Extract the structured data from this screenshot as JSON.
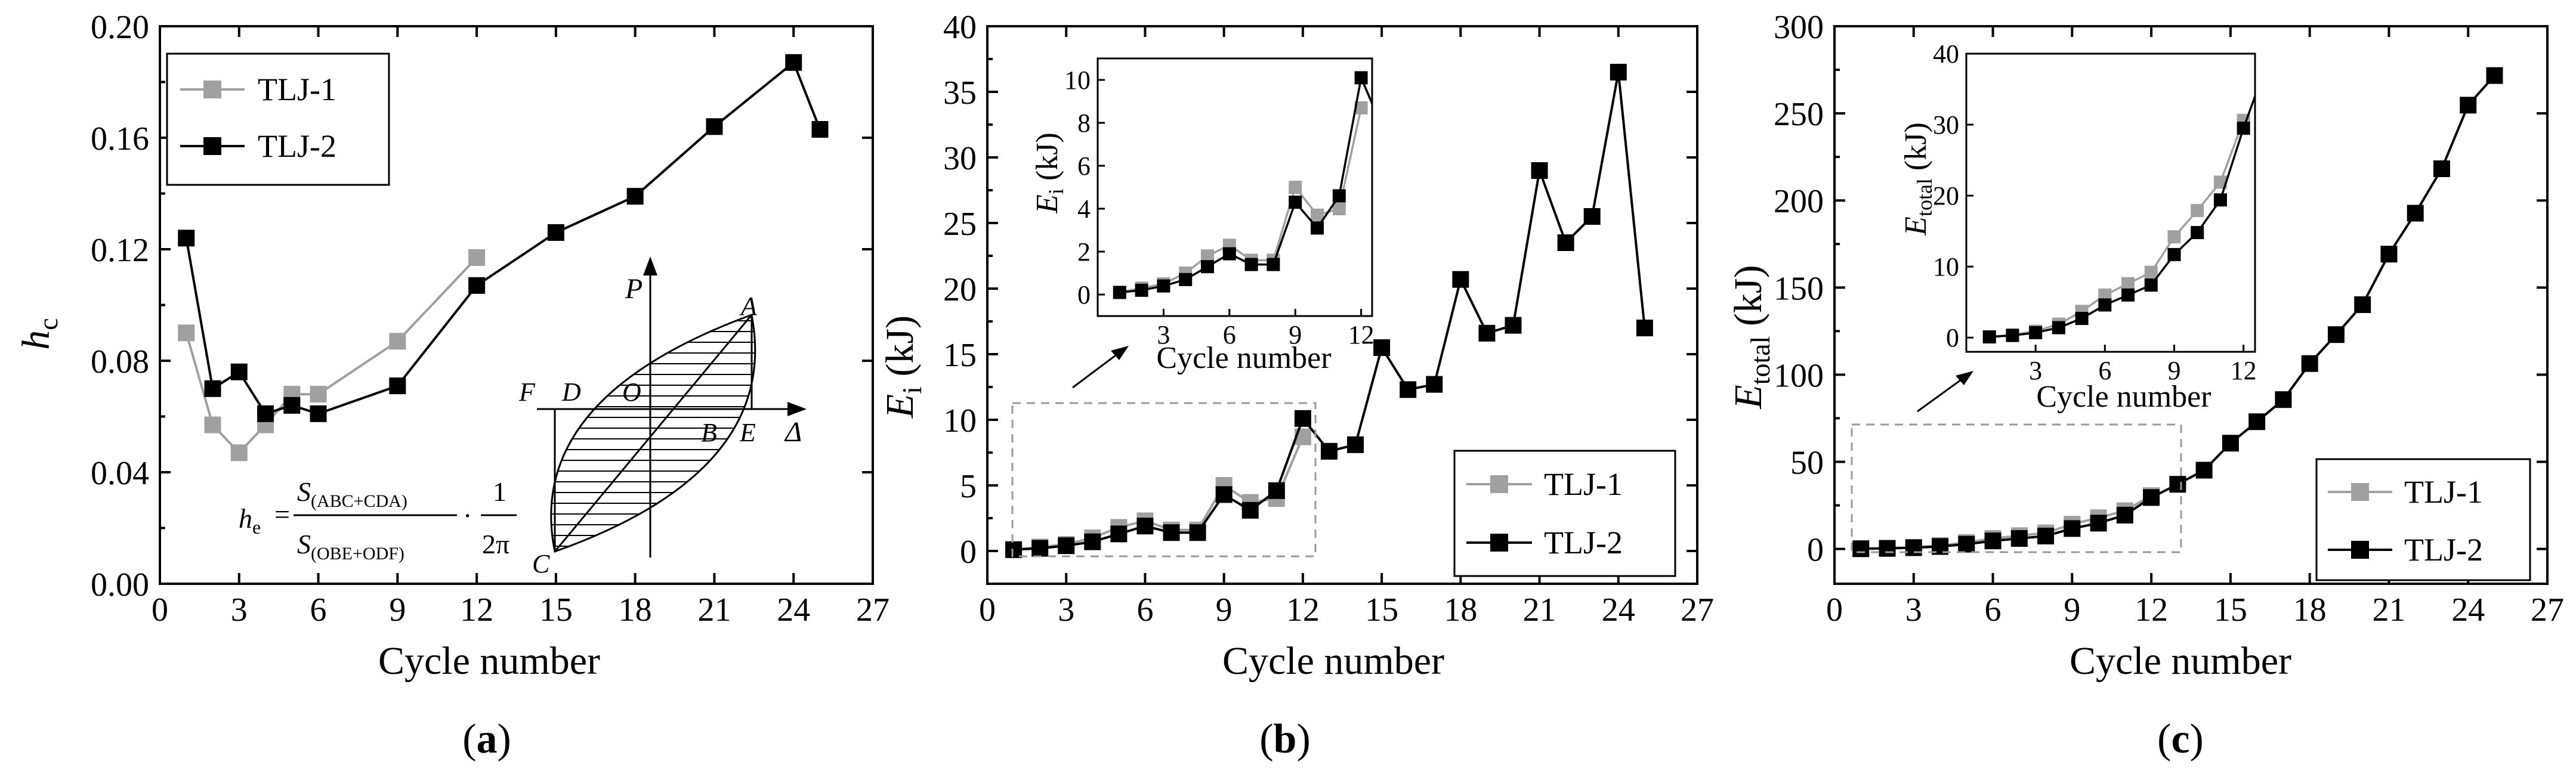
{
  "panels": [
    {
      "id": "a",
      "label_prefix": "(",
      "label_letter": "a",
      "label_suffix": ")",
      "ylabel_main": "h",
      "ylabel_sub": "c",
      "xlabel": "Cycle number",
      "xlim": [
        0,
        27
      ],
      "ylim": [
        0,
        0.2
      ],
      "xticks": [
        "0",
        "3",
        "6",
        "9",
        "12",
        "15",
        "18",
        "21",
        "24",
        "27"
      ],
      "yticks": [
        "0.00",
        "0.04",
        "0.08",
        "0.12",
        "0.16",
        "0.20"
      ],
      "legend_position": "top-left",
      "legend": [
        "TLJ-1",
        "TLJ-2"
      ],
      "inset_diagram": {
        "axis_labels": [
          "P",
          "Δ"
        ],
        "point_labels": [
          "A",
          "B",
          "C",
          "D",
          "E",
          "F",
          "O"
        ],
        "formula_lhs_main": "h",
        "formula_lhs_sub": "e",
        "formula_num_main": "S",
        "formula_num_sub": "(ABC+CDA)",
        "formula_den_main": "S",
        "formula_den_sub": "(OBE+ODF)",
        "formula_eq": "=",
        "formula_dot": "·",
        "formula_one": "1",
        "formula_two_pi": "2π"
      }
    },
    {
      "id": "b",
      "label_prefix": "(",
      "label_letter": "b",
      "label_suffix": ")",
      "ylabel_main": "E",
      "ylabel_sub": "i",
      "ylabel_unit": " (kJ)",
      "xlabel": "Cycle number",
      "xlim": [
        0,
        27
      ],
      "ylim": [
        -2.5,
        40
      ],
      "xticks": [
        "0",
        "3",
        "6",
        "9",
        "12",
        "15",
        "18",
        "21",
        "24",
        "27"
      ],
      "yticks": [
        "0",
        "5",
        "10",
        "15",
        "20",
        "25",
        "30",
        "35",
        "40"
      ],
      "legend_position": "bottom-right",
      "legend": [
        "TLJ-1",
        "TLJ-2"
      ],
      "inset": {
        "xlabel": "Cycle number",
        "ylabel_main": "E",
        "ylabel_sub": "i",
        "ylabel_unit": " (kJ)",
        "xticks": [
          "3",
          "6",
          "9",
          "12"
        ],
        "yticks": [
          "0",
          "2",
          "4",
          "6",
          "8",
          "10"
        ]
      }
    },
    {
      "id": "c",
      "label_prefix": "(",
      "label_letter": "c",
      "label_suffix": ")",
      "ylabel_main": "E",
      "ylabel_sub": "total",
      "ylabel_unit": " (kJ)",
      "xlabel": "Cycle number",
      "xlim": [
        0,
        27
      ],
      "ylim": [
        -20,
        300
      ],
      "xticks": [
        "0",
        "3",
        "6",
        "9",
        "12",
        "15",
        "18",
        "21",
        "24",
        "27"
      ],
      "yticks": [
        "0",
        "50",
        "100",
        "150",
        "200",
        "250",
        "300"
      ],
      "legend_position": "bottom-right",
      "legend": [
        "TLJ-1",
        "TLJ-2"
      ],
      "inset": {
        "xlabel": "Cycle number",
        "ylabel_main": "E",
        "ylabel_sub": "total",
        "ylabel_unit": " (kJ)",
        "xticks": [
          "3",
          "6",
          "9",
          "12"
        ],
        "yticks": [
          "0",
          "10",
          "20",
          "30",
          "40"
        ]
      }
    }
  ],
  "colors": {
    "TLJ-1": "#a0a0a0",
    "TLJ-2": "#000000",
    "dashed_box": "#9a9a9a"
  },
  "chart_data": [
    {
      "type": "line",
      "title": "(a)",
      "xlabel": "Cycle number",
      "ylabel": "h_c",
      "xlim": [
        0,
        27
      ],
      "ylim": [
        0,
        0.2
      ],
      "series": [
        {
          "name": "TLJ-1",
          "x": [
            1,
            2,
            3,
            4,
            5,
            6,
            9,
            12
          ],
          "values": [
            0.09,
            0.057,
            0.047,
            0.057,
            0.068,
            0.068,
            0.087,
            0.117
          ]
        },
        {
          "name": "TLJ-2",
          "x": [
            1,
            2,
            3,
            4,
            5,
            6,
            9,
            12,
            15,
            18,
            21,
            24,
            25
          ],
          "values": [
            0.124,
            0.07,
            0.076,
            0.061,
            0.064,
            0.061,
            0.071,
            0.107,
            0.126,
            0.139,
            0.164,
            0.187,
            0.163
          ]
        }
      ]
    },
    {
      "type": "line",
      "title": "(b)",
      "xlabel": "Cycle number",
      "ylabel": "E_i (kJ)",
      "xlim": [
        0,
        27
      ],
      "ylim": [
        -2.5,
        40
      ],
      "series": [
        {
          "name": "TLJ-1",
          "x": [
            1,
            2,
            3,
            4,
            5,
            6,
            7,
            8,
            9,
            10,
            11,
            12
          ],
          "values": [
            0.1,
            0.3,
            0.5,
            1.0,
            1.8,
            2.3,
            1.6,
            1.6,
            5.0,
            3.7,
            4.0,
            8.7
          ]
        },
        {
          "name": "TLJ-2",
          "x": [
            1,
            2,
            3,
            4,
            5,
            6,
            7,
            8,
            9,
            10,
            11,
            12,
            13,
            14,
            15,
            16,
            17,
            18,
            19,
            20,
            21,
            22,
            23,
            24,
            25
          ],
          "values": [
            0.1,
            0.2,
            0.4,
            0.7,
            1.3,
            1.9,
            1.4,
            1.4,
            4.3,
            3.1,
            4.6,
            10.1,
            7.6,
            8.1,
            15.5,
            12.3,
            12.7,
            20.7,
            16.6,
            17.2,
            29.0,
            23.5,
            25.5,
            36.5,
            17.0
          ]
        }
      ],
      "inset": {
        "xlim": [
          0,
          12.5
        ],
        "ylim": [
          -1,
          11
        ],
        "series": [
          {
            "name": "TLJ-1",
            "x": [
              1,
              2,
              3,
              4,
              5,
              6,
              7,
              8,
              9,
              10,
              11,
              12
            ],
            "values": [
              0.1,
              0.3,
              0.5,
              1.0,
              1.8,
              2.3,
              1.6,
              1.6,
              5.0,
              3.7,
              4.0,
              8.7
            ]
          },
          {
            "name": "TLJ-2",
            "x": [
              1,
              2,
              3,
              4,
              5,
              6,
              7,
              8,
              9,
              10,
              11,
              12,
              12.5
            ],
            "values": [
              0.1,
              0.2,
              0.4,
              0.7,
              1.3,
              1.9,
              1.4,
              1.4,
              4.3,
              3.1,
              4.6,
              10.1,
              8.9
            ]
          }
        ]
      }
    },
    {
      "type": "line",
      "title": "(c)",
      "xlabel": "Cycle number",
      "ylabel": "E_total (kJ)",
      "xlim": [
        0,
        27
      ],
      "ylim": [
        -20,
        300
      ],
      "series": [
        {
          "name": "TLJ-1",
          "x": [
            1,
            2,
            3,
            4,
            5,
            6,
            7,
            8,
            9,
            10,
            11,
            12
          ],
          "values": [
            0.1,
            0.4,
            0.9,
            1.9,
            3.7,
            6.0,
            7.6,
            9.2,
            14.2,
            17.9,
            21.9,
            30.6
          ]
        },
        {
          "name": "TLJ-2",
          "x": [
            1,
            2,
            3,
            4,
            5,
            6,
            7,
            8,
            9,
            10,
            11,
            12,
            13,
            14,
            15,
            16,
            17,
            18,
            19,
            20,
            21,
            22,
            23,
            24,
            25
          ],
          "values": [
            0.1,
            0.3,
            0.7,
            1.4,
            2.7,
            4.6,
            6.0,
            7.4,
            11.7,
            14.8,
            19.4,
            29.5,
            37.1,
            45.2,
            60.7,
            73.0,
            85.7,
            106.4,
            123.0,
            140.2,
            169.2,
            192.7,
            218.2,
            254.7,
            271.7
          ]
        }
      ],
      "inset": {
        "xlim": [
          0,
          12.5
        ],
        "ylim": [
          -2,
          40
        ],
        "series": [
          {
            "name": "TLJ-1",
            "x": [
              1,
              2,
              3,
              4,
              5,
              6,
              7,
              8,
              9,
              10,
              11,
              12
            ],
            "values": [
              0.1,
              0.4,
              0.9,
              1.9,
              3.7,
              6.0,
              7.6,
              9.2,
              14.2,
              17.9,
              21.9,
              30.6
            ]
          },
          {
            "name": "TLJ-2",
            "x": [
              1,
              2,
              3,
              4,
              5,
              6,
              7,
              8,
              9,
              10,
              11,
              12,
              12.5
            ],
            "values": [
              0.1,
              0.3,
              0.7,
              1.4,
              2.7,
              4.6,
              6.0,
              7.4,
              11.7,
              14.8,
              19.4,
              29.5,
              34.0
            ]
          }
        ]
      }
    }
  ]
}
